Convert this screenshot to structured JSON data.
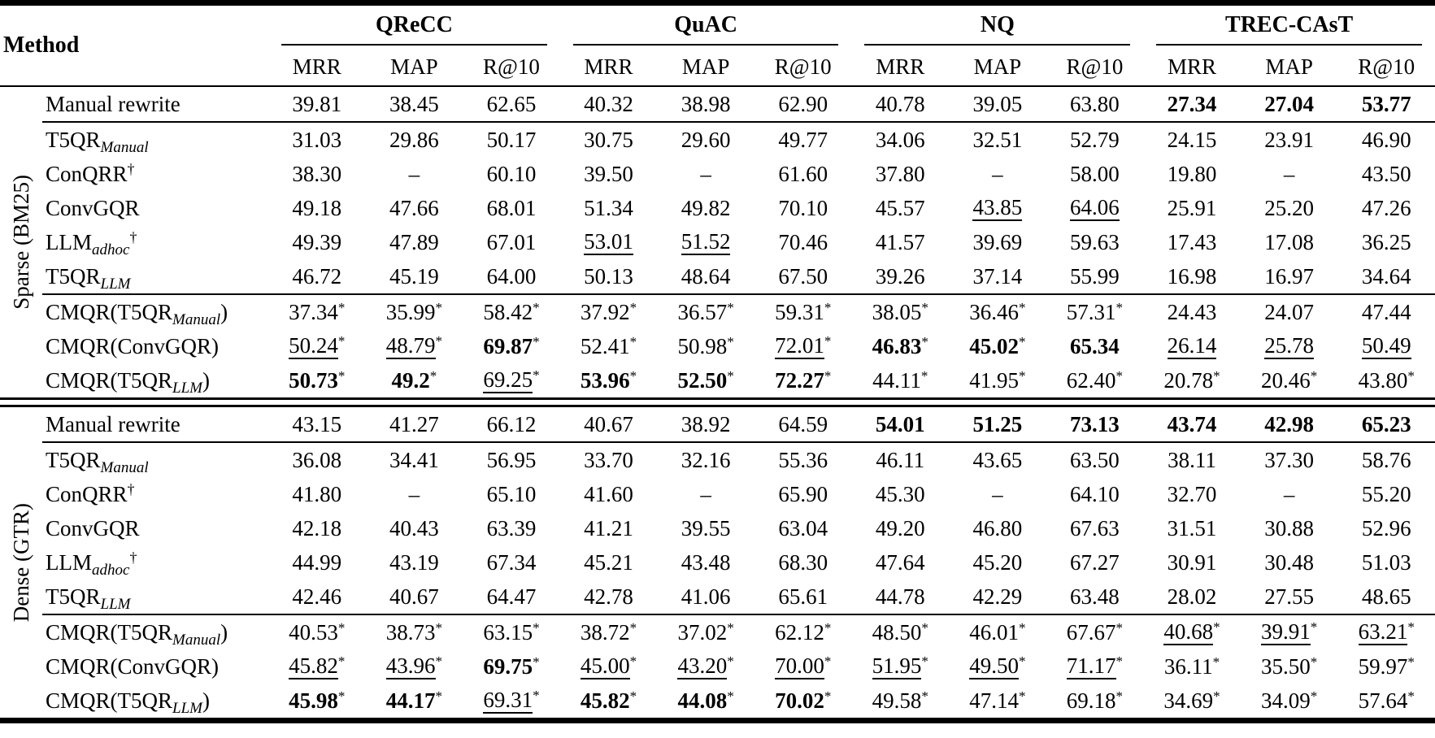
{
  "table": {
    "method_header": "Method",
    "groups": [
      {
        "label": "QReCC",
        "metrics": [
          "MRR",
          "MAP",
          "R@10"
        ]
      },
      {
        "label": "QuAC",
        "metrics": [
          "MRR",
          "MAP",
          "R@10"
        ]
      },
      {
        "label": "NQ",
        "metrics": [
          "MRR",
          "MAP",
          "R@10"
        ]
      },
      {
        "label": "TREC-CAsT",
        "metrics": [
          "MRR",
          "MAP",
          "R@10"
        ]
      }
    ],
    "legend": {
      "star": "*",
      "dagger": "†",
      "dash": "–"
    },
    "sections": [
      {
        "label": "Sparse (BM25)",
        "subsections": [
          {
            "rows": [
              {
                "method": [
                  {
                    "t": "Manual rewrite"
                  }
                ],
                "cells": [
                  "39.81",
                  "38.45",
                  "62.65",
                  "40.32",
                  "38.98",
                  "62.90",
                  "40.78",
                  "39.05",
                  "63.80",
                  "27.34|b",
                  "27.04|b",
                  "53.77|b"
                ]
              }
            ]
          },
          {
            "rows": [
              {
                "method": [
                  {
                    "t": "T5QR"
                  },
                  {
                    "t": "Manual",
                    "s": "sub"
                  }
                ],
                "cells": [
                  "31.03",
                  "29.86",
                  "50.17",
                  "30.75",
                  "29.60",
                  "49.77",
                  "34.06",
                  "32.51",
                  "52.79",
                  "24.15",
                  "23.91",
                  "46.90"
                ]
              },
              {
                "method": [
                  {
                    "t": "ConQRR"
                  },
                  {
                    "t": "†",
                    "s": "sup"
                  }
                ],
                "cells": [
                  "38.30",
                  "–",
                  "60.10",
                  "39.50",
                  "–",
                  "61.60",
                  "37.80",
                  "–",
                  "58.00",
                  "19.80",
                  "–",
                  "43.50"
                ]
              },
              {
                "method": [
                  {
                    "t": "ConvGQR"
                  }
                ],
                "cells": [
                  "49.18",
                  "47.66",
                  "68.01",
                  "51.34",
                  "49.82",
                  "70.10",
                  "45.57",
                  "43.85|u",
                  "64.06|u",
                  "25.91",
                  "25.20",
                  "47.26"
                ]
              },
              {
                "method": [
                  {
                    "t": "LLM"
                  },
                  {
                    "t": "adhoc",
                    "s": "sub"
                  },
                  {
                    "t": "†",
                    "s": "sup"
                  }
                ],
                "cells": [
                  "49.39",
                  "47.89",
                  "67.01",
                  "53.01|u",
                  "51.52|u",
                  "70.46",
                  "41.57",
                  "39.69",
                  "59.63",
                  "17.43",
                  "17.08",
                  "36.25"
                ]
              },
              {
                "method": [
                  {
                    "t": "T5QR"
                  },
                  {
                    "t": "LLM",
                    "s": "sub"
                  }
                ],
                "cells": [
                  "46.72",
                  "45.19",
                  "64.00",
                  "50.13",
                  "48.64",
                  "67.50",
                  "39.26",
                  "37.14",
                  "55.99",
                  "16.98",
                  "16.97",
                  "34.64"
                ]
              }
            ]
          },
          {
            "rows": [
              {
                "method": [
                  {
                    "t": "CMQR(T5QR"
                  },
                  {
                    "t": "Manual",
                    "s": "sub"
                  },
                  {
                    "t": ")"
                  }
                ],
                "cells": [
                  "37.34|s",
                  "35.99|s",
                  "58.42|s",
                  "37.92|s",
                  "36.57|s",
                  "59.31|s",
                  "38.05|s",
                  "36.46|s",
                  "57.31|s",
                  "24.43",
                  "24.07",
                  "47.44"
                ]
              },
              {
                "method": [
                  {
                    "t": "CMQR(ConvGQR)"
                  }
                ],
                "cells": [
                  "50.24|su",
                  "48.79|su",
                  "69.87|sb",
                  "52.41|s",
                  "50.98|s",
                  "72.01|su",
                  "46.83|sb",
                  "45.02|sb",
                  "65.34|b",
                  "26.14|u",
                  "25.78|u",
                  "50.49|u"
                ]
              },
              {
                "method": [
                  {
                    "t": "CMQR(T5QR"
                  },
                  {
                    "t": "LLM",
                    "s": "sub"
                  },
                  {
                    "t": ")"
                  }
                ],
                "cells": [
                  "50.73|sb",
                  "49.2|sb",
                  "69.25|su",
                  "53.96|sb",
                  "52.50|sb",
                  "72.27|sb",
                  "44.11|s",
                  "41.95|s",
                  "62.40|s",
                  "20.78|s",
                  "20.46|s",
                  "43.80|s"
                ]
              }
            ]
          }
        ]
      },
      {
        "label": "Dense (GTR)",
        "subsections": [
          {
            "rows": [
              {
                "method": [
                  {
                    "t": "Manual rewrite"
                  }
                ],
                "cells": [
                  "43.15",
                  "41.27",
                  "66.12",
                  "40.67",
                  "38.92",
                  "64.59",
                  "54.01|b",
                  "51.25|b",
                  "73.13|b",
                  "43.74|b",
                  "42.98|b",
                  "65.23|b"
                ]
              }
            ]
          },
          {
            "rows": [
              {
                "method": [
                  {
                    "t": "T5QR"
                  },
                  {
                    "t": "Manual",
                    "s": "sub"
                  }
                ],
                "cells": [
                  "36.08",
                  "34.41",
                  "56.95",
                  "33.70",
                  "32.16",
                  "55.36",
                  "46.11",
                  "43.65",
                  "63.50",
                  "38.11",
                  "37.30",
                  "58.76"
                ]
              },
              {
                "method": [
                  {
                    "t": "ConQRR"
                  },
                  {
                    "t": "†",
                    "s": "sup"
                  }
                ],
                "cells": [
                  "41.80",
                  "–",
                  "65.10",
                  "41.60",
                  "–",
                  "65.90",
                  "45.30",
                  "–",
                  "64.10",
                  "32.70",
                  "–",
                  "55.20"
                ]
              },
              {
                "method": [
                  {
                    "t": "ConvGQR"
                  }
                ],
                "cells": [
                  "42.18",
                  "40.43",
                  "63.39",
                  "41.21",
                  "39.55",
                  "63.04",
                  "49.20",
                  "46.80",
                  "67.63",
                  "31.51",
                  "30.88",
                  "52.96"
                ]
              },
              {
                "method": [
                  {
                    "t": "LLM"
                  },
                  {
                    "t": "adhoc",
                    "s": "sub"
                  },
                  {
                    "t": "†",
                    "s": "sup"
                  }
                ],
                "cells": [
                  "44.99",
                  "43.19",
                  "67.34",
                  "45.21",
                  "43.48",
                  "68.30",
                  "47.64",
                  "45.20",
                  "67.27",
                  "30.91",
                  "30.48",
                  "51.03"
                ]
              },
              {
                "method": [
                  {
                    "t": "T5QR"
                  },
                  {
                    "t": "LLM",
                    "s": "sub"
                  }
                ],
                "cells": [
                  "42.46",
                  "40.67",
                  "64.47",
                  "42.78",
                  "41.06",
                  "65.61",
                  "44.78",
                  "42.29",
                  "63.48",
                  "28.02",
                  "27.55",
                  "48.65"
                ]
              }
            ]
          },
          {
            "rows": [
              {
                "method": [
                  {
                    "t": "CMQR(T5QR"
                  },
                  {
                    "t": "Manual",
                    "s": "sub"
                  },
                  {
                    "t": ")"
                  }
                ],
                "cells": [
                  "40.53|s",
                  "38.73|s",
                  "63.15|s",
                  "38.72|s",
                  "37.02|s",
                  "62.12|s",
                  "48.50|s",
                  "46.01|s",
                  "67.67|s",
                  "40.68|su",
                  "39.91|su",
                  "63.21|su"
                ]
              },
              {
                "method": [
                  {
                    "t": "CMQR(ConvGQR)"
                  }
                ],
                "cells": [
                  "45.82|su",
                  "43.96|su",
                  "69.75|sb",
                  "45.00|su",
                  "43.20|su",
                  "70.00|su",
                  "51.95|su",
                  "49.50|su",
                  "71.17|su",
                  "36.11|s",
                  "35.50|s",
                  "59.97|s"
                ]
              },
              {
                "method": [
                  {
                    "t": "CMQR(T5QR"
                  },
                  {
                    "t": "LLM",
                    "s": "sub"
                  },
                  {
                    "t": ")"
                  }
                ],
                "cells": [
                  "45.98|sb",
                  "44.17|sb",
                  "69.31|su",
                  "45.82|sb",
                  "44.08|sb",
                  "70.02|sb",
                  "49.58|s",
                  "47.14|s",
                  "69.18|s",
                  "34.69|s",
                  "34.09|s",
                  "57.64|s"
                ]
              }
            ]
          }
        ]
      }
    ]
  }
}
